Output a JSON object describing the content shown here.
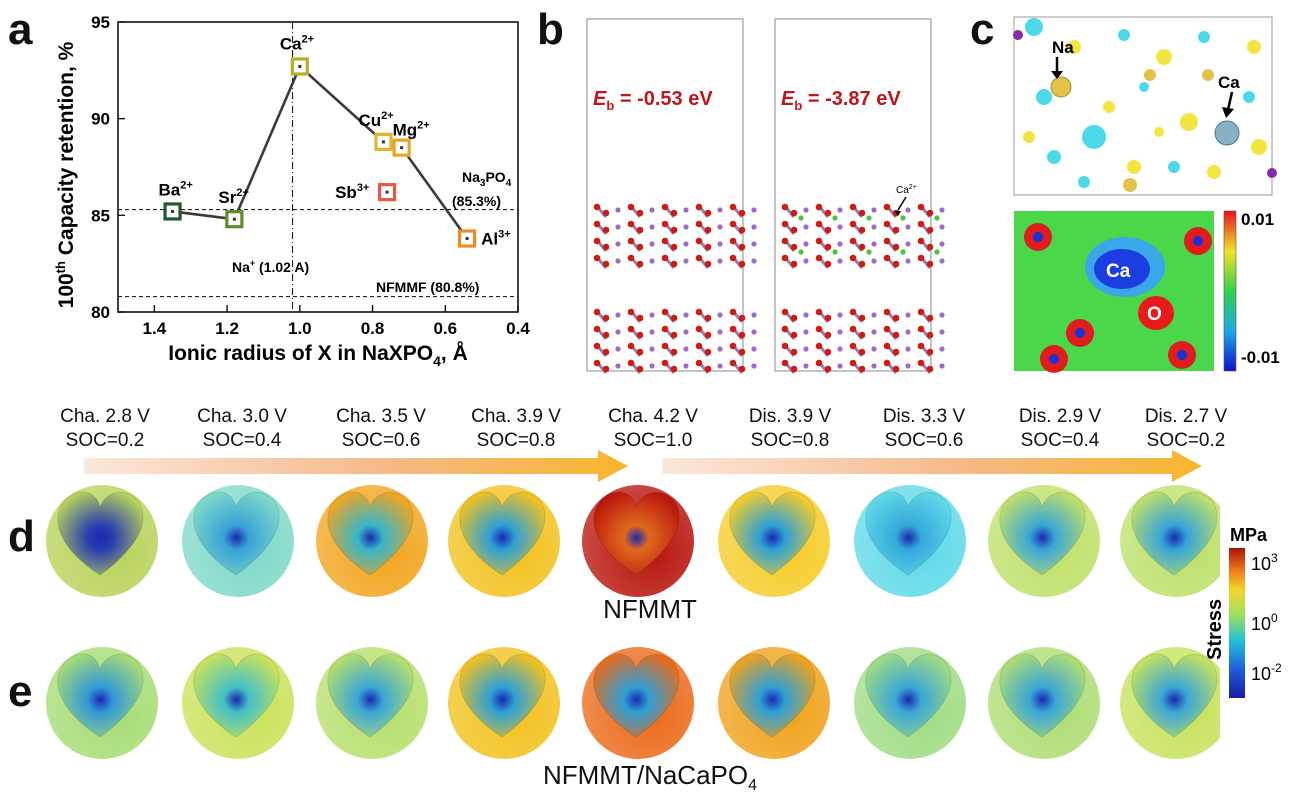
{
  "panels": {
    "a": "a",
    "b": "b",
    "c": "c",
    "d": "d",
    "e": "e"
  },
  "chart_data": {
    "type": "line",
    "xlabel": "Ionic radius of X in NaXPO",
    "xlabel_sub": "4",
    "xlabel_suffix": ", Å",
    "ylabel_prefix": "100",
    "ylabel_sup": "th",
    "ylabel_rest": " Capacity retention, %",
    "xlim": [
      1.5,
      0.4
    ],
    "ylim": [
      80,
      95
    ],
    "x_ticks": [
      "1.4",
      "1.2",
      "1.0",
      "0.8",
      "0.6",
      "0.4"
    ],
    "y_ticks": [
      "80",
      "85",
      "90",
      "95"
    ],
    "x_tick_values": [
      1.4,
      1.2,
      1.0,
      0.8,
      0.6,
      0.4
    ],
    "y_tick_values": [
      80,
      85,
      90,
      95
    ],
    "series_line": [
      {
        "ion": "Ba",
        "charge": "2+",
        "x": 1.35,
        "y": 85.2,
        "color": "#1f5a2e"
      },
      {
        "ion": "Sr",
        "charge": "2+",
        "x": 1.18,
        "y": 84.8,
        "color": "#5f8d2a"
      },
      {
        "ion": "Ca",
        "charge": "2+",
        "x": 1.0,
        "y": 92.7,
        "color": "#b5b02c"
      },
      {
        "ion": "Cu",
        "charge": "2+",
        "x": 0.77,
        "y": 88.8,
        "color": "#e0b530"
      },
      {
        "ion": "Mg",
        "charge": "2+",
        "x": 0.72,
        "y": 88.5,
        "color": "#e8a626"
      },
      {
        "ion": "Al",
        "charge": "3+",
        "x": 0.54,
        "y": 83.8,
        "color": "#ef8a2c"
      }
    ],
    "isolated_points": [
      {
        "ion": "Sb",
        "charge": "3+",
        "x": 0.76,
        "y": 86.2,
        "color": "#ea5844"
      }
    ],
    "reference_lines": [
      {
        "y": 85.3,
        "label": "Na3PO4 (85.3%)"
      },
      {
        "y": 80.8,
        "label": "NFMMF (80.8%)"
      }
    ],
    "vertical_ref": {
      "x": 1.02,
      "label": "Na+ (1.02 A)"
    },
    "annotations": {
      "na3po4_main": "Na",
      "na3po4_sub": "3",
      "na3po4_mid": "PO",
      "na3po4_sub2": "4",
      "na3po4_pct": "(85.3%)",
      "nfmmf": "NFMMF (80.8%)",
      "na_ion": "Na",
      "na_sup": "+",
      "na_rest": " (1.02 A)"
    }
  },
  "panel_b": {
    "left_label_E": "E",
    "left_label_sub": "b",
    "left_label_value": " = -0.53 eV",
    "right_label_E": "E",
    "right_label_sub": "b",
    "right_label_value": " = -3.87 eV",
    "arrow_label": "Ca",
    "arrow_label_sup": "2+"
  },
  "panel_c": {
    "na_label": "Na",
    "ca_label": "Ca",
    "map_ca": "Ca",
    "map_o": "O",
    "colorbar_max": "0.01",
    "colorbar_min": "-0.01"
  },
  "stages": [
    {
      "line1": "Cha. 2.8 V",
      "line2": "SOC=0.2"
    },
    {
      "line1": "Cha. 3.0 V",
      "line2": "SOC=0.4"
    },
    {
      "line1": "Cha. 3.5 V",
      "line2": "SOC=0.6"
    },
    {
      "line1": "Cha. 3.9 V",
      "line2": "SOC=0.8"
    },
    {
      "line1": "Cha. 4.2 V",
      "line2": "SOC=1.0"
    },
    {
      "line1": "Dis. 3.9 V",
      "line2": "SOC=0.8"
    },
    {
      "line1": "Dis. 3.3 V",
      "line2": "SOC=0.6"
    },
    {
      "line1": "Dis. 2.9 V",
      "line2": "SOC=0.4"
    },
    {
      "line1": "Dis. 2.7 V",
      "line2": "SOC=0.2"
    }
  ],
  "row_d_title": "NFMMT",
  "row_e_title_main": "NFMMT/NaCaPO",
  "row_e_title_sub": "4",
  "stress_colorbar": {
    "unit": "MPa",
    "label": "Stress",
    "ticks": [
      {
        "base": "10",
        "exp": "3"
      },
      {
        "base": "10",
        "exp": "0"
      },
      {
        "base": "10",
        "exp": "-2"
      }
    ]
  },
  "colors": {
    "arrow_orange": "#f7b52c",
    "label_red": "#c0161b",
    "axis": "#111111"
  },
  "sphere_colors_d": [
    {
      "outer": "#b8d35a",
      "inner": "#2b3db0"
    },
    {
      "outer": "#7fd9c8",
      "inner": "#3aa3d6"
    },
    {
      "outer": "#f2a51f",
      "inner": "#37b6c9"
    },
    {
      "outer": "#f2c21f",
      "inner": "#2fa0d6"
    },
    {
      "outer": "#b8150c",
      "inner": "#e1681e"
    },
    {
      "outer": "#f5cc2a",
      "inner": "#2fa0d6"
    },
    {
      "outer": "#5fd9e8",
      "inner": "#35a9da"
    },
    {
      "outer": "#bfe06a",
      "inner": "#3aa6d6"
    },
    {
      "outer": "#bde06a",
      "inner": "#36a4d8"
    }
  ],
  "sphere_colors_e": [
    {
      "outer": "#a6dc74",
      "inner": "#3198d8"
    },
    {
      "outer": "#c9e25a",
      "inner": "#44c0c6"
    },
    {
      "outer": "#b6df6c",
      "inner": "#3aa6d6"
    },
    {
      "outer": "#f2c21f",
      "inner": "#2fa0d6"
    },
    {
      "outer": "#eb6a1a",
      "inner": "#2fa0d6"
    },
    {
      "outer": "#f0a21c",
      "inner": "#2fa0d6"
    },
    {
      "outer": "#9fdc84",
      "inner": "#3aa6d6"
    },
    {
      "outer": "#aedd74",
      "inner": "#3aa6d6"
    },
    {
      "outer": "#c6e25e",
      "inner": "#3aa6d6"
    }
  ]
}
